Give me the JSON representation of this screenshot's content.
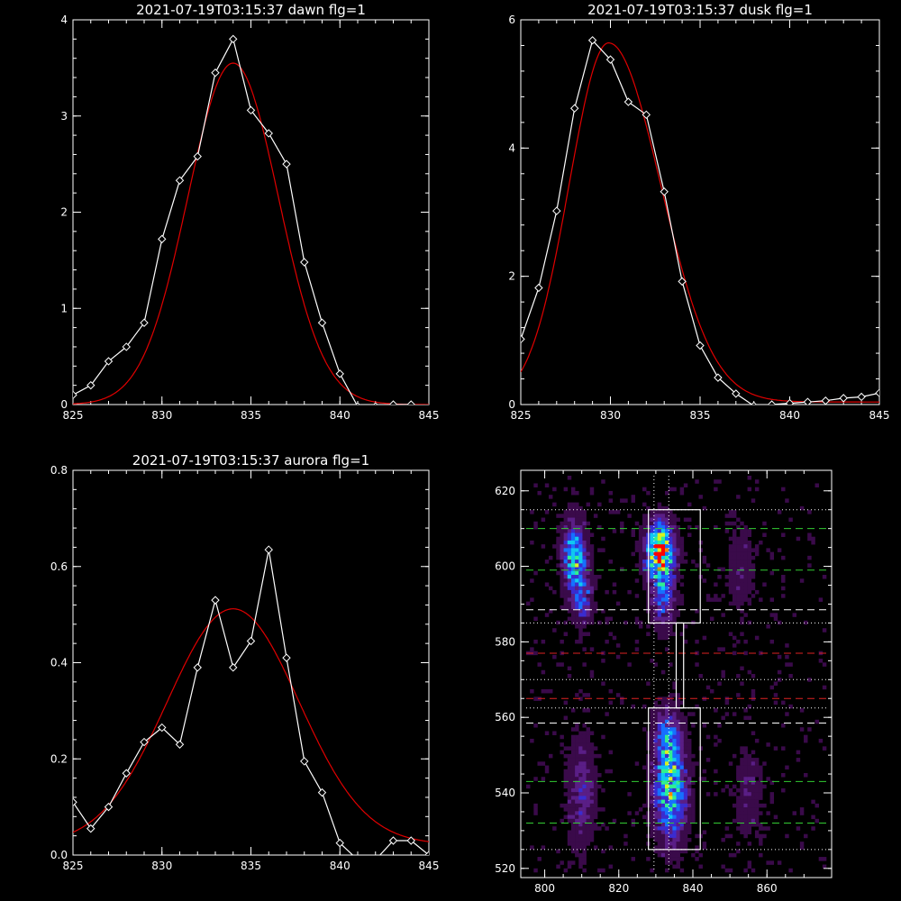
{
  "chart_data": [
    {
      "type": "line",
      "title": "2021-07-19T03:15:37 dawn flg=1",
      "xlim": [
        825,
        845
      ],
      "ylim": [
        0,
        4
      ],
      "x_ticks": [
        825,
        830,
        835,
        840,
        845
      ],
      "y_ticks": [
        0,
        1,
        2,
        3,
        4
      ],
      "y_tick_labels": [
        "0",
        "1",
        "2",
        "3",
        "4"
      ],
      "series": [
        {
          "color": "#ffffff",
          "marker": "diamond",
          "x": [
            825,
            826,
            827,
            828,
            829,
            830,
            831,
            832,
            833,
            834,
            835,
            836,
            837,
            838,
            839,
            840,
            841,
            842,
            843,
            844
          ],
          "y": [
            0.1,
            0.2,
            0.45,
            0.6,
            0.85,
            1.72,
            2.33,
            2.58,
            3.45,
            3.8,
            3.06,
            2.82,
            2.5,
            1.48,
            0.85,
            0.32,
            -0.02,
            -0.02,
            0.0,
            0.0
          ]
        },
        {
          "color": "#e00000",
          "fit": "gaussian",
          "amplitude": 3.55,
          "center": 834.0,
          "sigma": 2.55,
          "offset": 0.0
        }
      ]
    },
    {
      "type": "line",
      "title": "2021-07-19T03:15:37 dusk flg=1",
      "xlim": [
        825,
        845
      ],
      "ylim": [
        0,
        6
      ],
      "x_ticks": [
        825,
        830,
        835,
        840,
        845
      ],
      "y_ticks": [
        0,
        2,
        4,
        6
      ],
      "y_tick_labels": [
        "0",
        "2",
        "4",
        "6"
      ],
      "series": [
        {
          "color": "#ffffff",
          "marker": "diamond",
          "x": [
            825,
            826,
            827,
            828,
            829,
            830,
            831,
            832,
            833,
            834,
            835,
            836,
            837,
            838,
            839,
            840,
            841,
            842,
            843,
            844,
            845
          ],
          "y": [
            1.02,
            1.82,
            3.02,
            4.62,
            5.68,
            5.38,
            4.72,
            4.52,
            3.32,
            1.92,
            0.92,
            0.42,
            0.17,
            -0.02,
            0.0,
            0.02,
            0.04,
            0.06,
            0.1,
            0.12,
            0.18
          ]
        },
        {
          "color": "#e00000",
          "fit": "skewed",
          "amplitude": 5.6,
          "center": 829.9,
          "sigma_left": 2.2,
          "sigma_right": 2.9,
          "offset": 0.04
        }
      ]
    },
    {
      "type": "line",
      "title": "2021-07-19T03:15:37 aurora flg=1",
      "xlim": [
        825,
        845
      ],
      "ylim": [
        0,
        0.8
      ],
      "x_ticks": [
        825,
        830,
        835,
        840,
        845
      ],
      "y_ticks": [
        0,
        0.2,
        0.4,
        0.6,
        0.8
      ],
      "y_tick_labels": [
        "0.0",
        "0.2",
        "0.4",
        "0.6",
        "0.8"
      ],
      "series": [
        {
          "color": "#ffffff",
          "marker": "diamond",
          "x": [
            825,
            826,
            827,
            828,
            829,
            830,
            831,
            832,
            833,
            834,
            835,
            836,
            837,
            838,
            839,
            840,
            841,
            842,
            843,
            844,
            845
          ],
          "y": [
            0.11,
            0.055,
            0.1,
            0.17,
            0.235,
            0.265,
            0.23,
            0.39,
            0.53,
            0.39,
            0.445,
            0.635,
            0.41,
            0.195,
            0.13,
            0.025,
            -0.01,
            -0.01,
            0.03,
            0.03,
            0.0
          ]
        },
        {
          "color": "#e00000",
          "fit": "gaussian",
          "amplitude": 0.49,
          "center": 834.0,
          "sigma": 3.7,
          "offset": 0.022
        }
      ]
    },
    {
      "type": "heatmap",
      "xlim": [
        795,
        876
      ],
      "ylim": [
        519,
        624
      ],
      "x_ticks": [
        800,
        820,
        840,
        860
      ],
      "y_ticks": [
        520,
        540,
        560,
        580,
        600,
        620
      ],
      "colormap": [
        "#000000",
        "#3a0a4a",
        "#5a1e86",
        "#3a2cd0",
        "#1670ff",
        "#10c8f0",
        "#30f090",
        "#d8f020",
        "#ff8800",
        "#ff0000"
      ],
      "blobs": [
        {
          "x": 808,
          "y": 603,
          "sx": 2.2,
          "sy": 6,
          "amp": 0.55
        },
        {
          "x": 810,
          "y": 592,
          "sx": 2.0,
          "sy": 5,
          "amp": 0.35
        },
        {
          "x": 831,
          "y": 604,
          "sx": 2.6,
          "sy": 5,
          "amp": 0.9
        },
        {
          "x": 832,
          "y": 592,
          "sx": 2.2,
          "sy": 6,
          "amp": 0.35
        },
        {
          "x": 834,
          "y": 540,
          "sx": 3.0,
          "sy": 9,
          "amp": 0.6
        },
        {
          "x": 833,
          "y": 554,
          "sx": 2.4,
          "sy": 6,
          "amp": 0.35
        },
        {
          "x": 810,
          "y": 540,
          "sx": 2.5,
          "sy": 10,
          "amp": 0.25
        },
        {
          "x": 855,
          "y": 540,
          "sx": 2.5,
          "sy": 8,
          "amp": 0.15
        },
        {
          "x": 853,
          "y": 600,
          "sx": 2.5,
          "sy": 8,
          "amp": 0.15
        }
      ],
      "vlines": [
        {
          "x": 829.5,
          "color": "#ffffff",
          "style": "dotted"
        },
        {
          "x": 833.5,
          "color": "#ffffff",
          "style": "dotted"
        }
      ],
      "hlines": [
        {
          "y": 615,
          "color": "#ffffff",
          "style": "dotted"
        },
        {
          "y": 610,
          "color": "#33cc33",
          "style": "dashed"
        },
        {
          "y": 599,
          "color": "#33cc33",
          "style": "dashed"
        },
        {
          "y": 588.5,
          "color": "#ffffff",
          "style": "dashed"
        },
        {
          "y": 585,
          "color": "#ffffff",
          "style": "dotted"
        },
        {
          "y": 577,
          "color": "#dd2222",
          "style": "dashed"
        },
        {
          "y": 570,
          "color": "#ffffff",
          "style": "dotted"
        },
        {
          "y": 565,
          "color": "#dd2222",
          "style": "dashed"
        },
        {
          "y": 562.5,
          "color": "#ffffff",
          "style": "dotted"
        },
        {
          "y": 558.5,
          "color": "#ffffff",
          "style": "dashed"
        },
        {
          "y": 543,
          "color": "#33cc33",
          "style": "dashed"
        },
        {
          "y": 532,
          "color": "#33cc33",
          "style": "dashed"
        },
        {
          "y": 525,
          "color": "#ffffff",
          "style": "dotted"
        }
      ],
      "boxes": [
        {
          "x0": 828,
          "x1": 842,
          "y0": 585,
          "y1": 615
        },
        {
          "x0": 828,
          "x1": 842,
          "y0": 525,
          "y1": 562.5
        },
        {
          "x0": 835.5,
          "x1": 837.5,
          "y0": 562.5,
          "y1": 585
        }
      ]
    }
  ]
}
